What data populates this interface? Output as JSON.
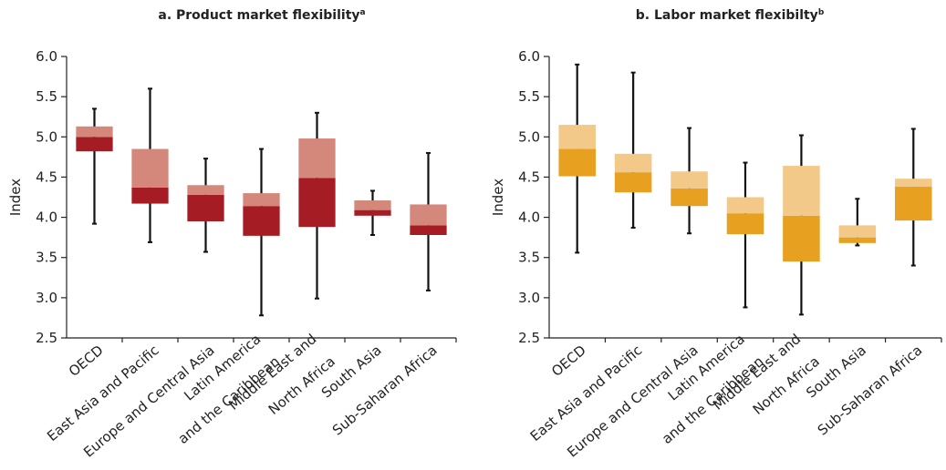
{
  "chart_data": [
    {
      "type": "box",
      "title": "a.  Product market flexibility",
      "title_superscript": "a",
      "ylabel": "Index",
      "categories": [
        [
          "OECD"
        ],
        [
          "East Asia and Pacific"
        ],
        [
          "Europe and Central Asia"
        ],
        [
          "Latin America",
          "and the Caribbean"
        ],
        [
          "Middle East and",
          "North Africa"
        ],
        [
          "South Asia"
        ],
        [
          "Sub-Saharan Africa"
        ]
      ],
      "boxes": [
        {
          "min": 3.92,
          "q1": 4.82,
          "median": 5.0,
          "q3": 5.13,
          "max": 5.35
        },
        {
          "min": 3.69,
          "q1": 4.17,
          "median": 4.37,
          "q3": 4.85,
          "max": 5.6
        },
        {
          "min": 3.57,
          "q1": 3.95,
          "median": 4.28,
          "q3": 4.4,
          "max": 4.73
        },
        {
          "min": 2.78,
          "q1": 3.77,
          "median": 4.14,
          "q3": 4.3,
          "max": 4.85
        },
        {
          "min": 2.99,
          "q1": 3.88,
          "median": 4.49,
          "q3": 4.98,
          "max": 5.3
        },
        {
          "min": 3.78,
          "q1": 4.02,
          "median": 4.09,
          "q3": 4.21,
          "max": 4.33
        },
        {
          "min": 3.09,
          "q1": 3.78,
          "median": 3.9,
          "q3": 4.16,
          "max": 4.8
        }
      ],
      "lower_color": "#a51c24",
      "upper_color": "#d4877b",
      "ylim": [
        2.5,
        6.0
      ],
      "yticks": [
        2.5,
        {
          "value": 3,
          "label": "3.0"
        },
        3.5,
        {
          "value": 4,
          "label": "4.0"
        },
        4.5,
        {
          "value": 5,
          "label": "5.0"
        },
        5.5,
        {
          "value": 6,
          "label": "6.0"
        }
      ]
    },
    {
      "type": "box",
      "title": "b.  Labor market flexibilty",
      "title_superscript": "b",
      "ylabel": "Index",
      "categories": [
        [
          "OECD"
        ],
        [
          "East Asia and Pacific"
        ],
        [
          "Europe and Central Asia"
        ],
        [
          "Latin America",
          "and the Caribbean"
        ],
        [
          "Middle East and",
          "North Africa"
        ],
        [
          "South Asia"
        ],
        [
          "Sub-Saharan Africa"
        ]
      ],
      "boxes": [
        {
          "min": 3.56,
          "q1": 4.51,
          "median": 4.85,
          "q3": 5.15,
          "max": 5.9
        },
        {
          "min": 3.87,
          "q1": 4.31,
          "median": 4.56,
          "q3": 4.79,
          "max": 5.8
        },
        {
          "min": 3.8,
          "q1": 4.14,
          "median": 4.36,
          "q3": 4.57,
          "max": 5.11
        },
        {
          "min": 2.88,
          "q1": 3.79,
          "median": 4.05,
          "q3": 4.25,
          "max": 4.68
        },
        {
          "min": 2.79,
          "q1": 3.45,
          "median": 4.02,
          "q3": 4.64,
          "max": 5.02
        },
        {
          "min": 3.65,
          "q1": 3.68,
          "median": 3.75,
          "q3": 3.9,
          "max": 4.23
        },
        {
          "min": 3.4,
          "q1": 3.96,
          "median": 4.38,
          "q3": 4.48,
          "max": 5.1
        }
      ],
      "lower_color": "#e8a020",
      "upper_color": "#f3c98a",
      "ylim": [
        2.5,
        6.0
      ],
      "yticks": [
        2.5,
        {
          "value": 3,
          "label": "3.0"
        },
        3.5,
        {
          "value": 4,
          "label": "4.0"
        },
        4.5,
        {
          "value": 5,
          "label": "5.0"
        },
        5.5,
        {
          "value": 6,
          "label": "6.0"
        }
      ]
    }
  ]
}
